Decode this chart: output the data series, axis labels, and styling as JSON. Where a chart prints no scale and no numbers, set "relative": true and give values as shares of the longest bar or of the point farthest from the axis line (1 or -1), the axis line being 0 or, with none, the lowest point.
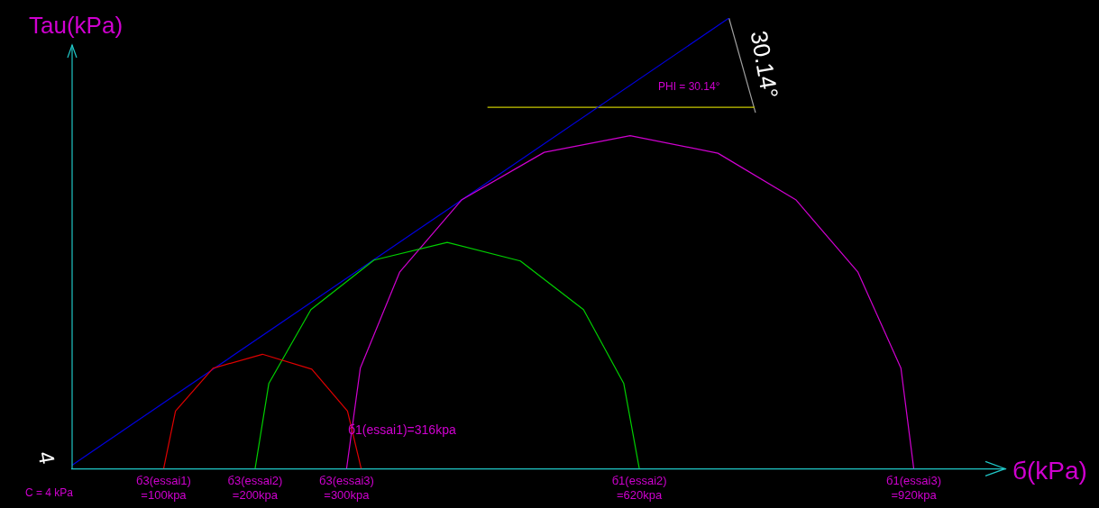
{
  "chart_data": {
    "type": "line",
    "xlabel": "б(kPa)",
    "ylabel": "Tau(kPa)",
    "relative": true,
    "xlim": [
      0,
      1020
    ],
    "xticks": [
      {
        "value": 100,
        "label": "=100kpa"
      },
      {
        "value": 200,
        "label": "=200kpa"
      },
      {
        "value": 300,
        "label": "=300kpa"
      },
      {
        "value": 620,
        "label": "=620kpa"
      },
      {
        "value": 920,
        "label": "=920kpa"
      }
    ],
    "grid": false,
    "legend": false,
    "marker": "none",
    "line_style": "solid",
    "series": [
      {
        "color": "#e00000",
        "x": [
          100,
          113,
          154,
          208,
          262,
          301,
          316
        ],
        "values": [
          0,
          0.128,
          0.223,
          0.254,
          0.221,
          0.128,
          0
        ]
      },
      {
        "color": "#00d000",
        "x": [
          200,
          215,
          261,
          330,
          410,
          490,
          559,
          603,
          620
        ],
        "values": [
          0,
          0.189,
          0.353,
          0.463,
          0.502,
          0.461,
          0.353,
          0.189,
          0
        ]
      },
      {
        "color": "#d000d0",
        "x": [
          300,
          315,
          358,
          426,
          516,
          610,
          706,
          791,
          859,
          906,
          920
        ],
        "values": [
          0,
          0.223,
          0.436,
          0.597,
          0.702,
          0.739,
          0.7,
          0.597,
          0.436,
          0.223,
          0
        ]
      },
      {
        "color": "#0000e0",
        "x": [
          0,
          718
        ],
        "values": [
          0.008,
          1
        ]
      },
      {
        "color": "#c8c800",
        "x": [
          454,
          746
        ],
        "values": [
          0.802,
          0.802
        ]
      },
      {
        "color": "#a0a0a0",
        "x": [
          718,
          747
        ],
        "values": [
          1,
          0.79
        ]
      }
    ],
    "annotations": [
      "C = 4 kPa",
      {
        "text": "4",
        "x": 0,
        "y": 0.008
      },
      "б1(essai1)=316kpa",
      "PHI = 30.14°",
      "30.14°",
      {
        "text": "б3(essai1)",
        "x": 100,
        "y": 0
      },
      {
        "text": "б3(essai2)",
        "x": 200,
        "y": 0
      },
      {
        "text": "б3(essai3)",
        "x": 300,
        "y": 0
      },
      {
        "text": "б1(essai2)",
        "x": 620,
        "y": 0
      },
      {
        "text": "б1(essai3)",
        "x": 920,
        "y": 0
      }
    ]
  }
}
